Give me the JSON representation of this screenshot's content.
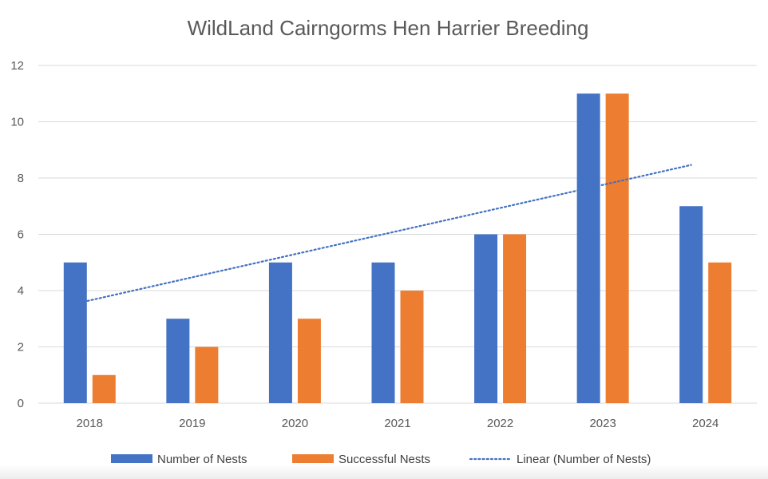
{
  "chart_data": {
    "type": "bar",
    "title": "WildLand Cairngorms Hen Harrier Breeding",
    "categories": [
      "2018",
      "2019",
      "2020",
      "2021",
      "2022",
      "2023",
      "2024"
    ],
    "series": [
      {
        "name": "Number of Nests",
        "values": [
          5,
          3,
          5,
          5,
          6,
          11,
          7
        ],
        "color": "#4472C4"
      },
      {
        "name": "Successful Nests",
        "values": [
          1,
          2,
          3,
          4,
          6,
          11,
          5
        ],
        "color": "#ED7D31"
      }
    ],
    "trendline": {
      "name": "Linear  (Number of Nests)",
      "type": "linear",
      "of_series": "Number of Nests",
      "color": "#4472C4",
      "style": "dotted"
    },
    "ylim": [
      0,
      12
    ],
    "yticks": [
      "0",
      "2",
      "4",
      "6",
      "8",
      "10",
      "12"
    ],
    "grid": true,
    "legend_position": "bottom"
  }
}
